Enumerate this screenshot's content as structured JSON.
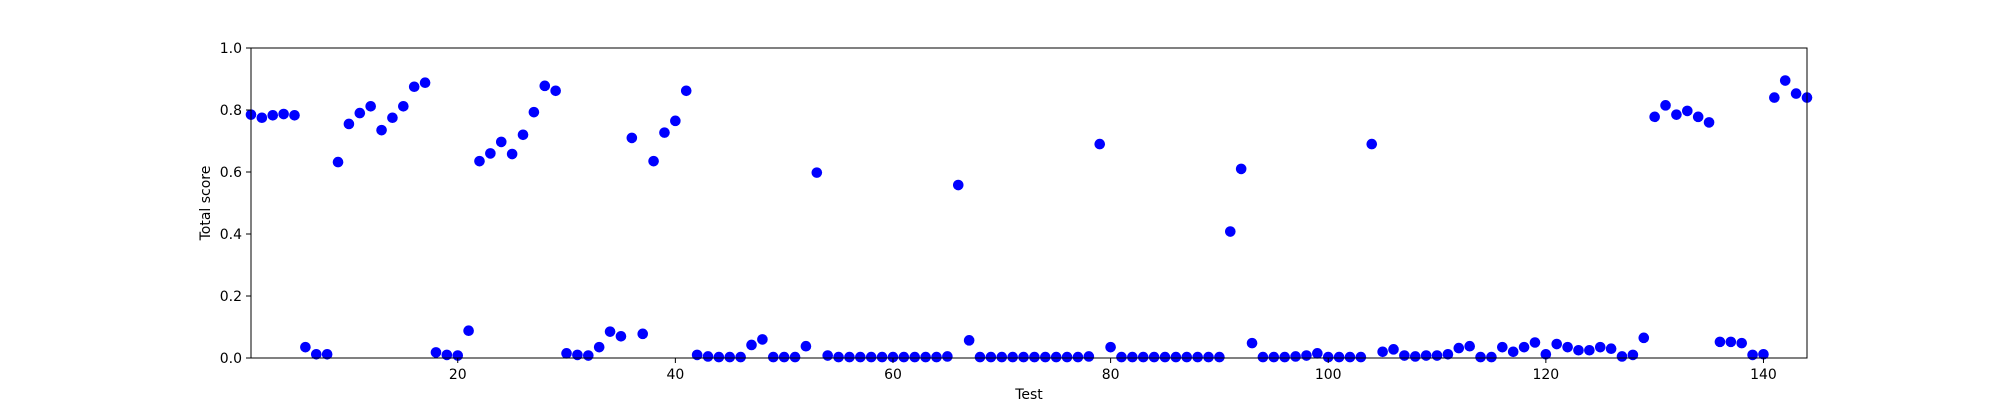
{
  "chart_data": {
    "type": "scatter",
    "xlabel": "Test",
    "ylabel": "Total score",
    "xlim": [
      1,
      144
    ],
    "ylim": [
      0,
      1
    ],
    "x_ticks": [
      20,
      40,
      60,
      80,
      100,
      120,
      140
    ],
    "y_ticks": [
      0.0,
      0.2,
      0.4,
      0.6,
      0.8,
      1.0
    ],
    "x_tick_labels": [
      "20",
      "40",
      "60",
      "80",
      "100",
      "120",
      "140"
    ],
    "y_tick_labels": [
      "0.0",
      "0.2",
      "0.4",
      "0.6",
      "0.8",
      "1.0"
    ],
    "grid": false,
    "marker_color": "#0000ff",
    "series": [
      {
        "x": [
          1,
          2,
          3,
          4,
          5,
          6,
          7,
          8,
          9,
          10,
          11,
          12,
          13,
          14,
          15,
          16,
          17,
          18,
          19,
          20,
          21,
          22,
          23,
          24,
          25,
          26,
          27,
          28,
          29,
          30,
          31,
          32,
          33,
          34,
          35,
          36,
          37,
          38,
          39,
          40,
          41,
          42,
          43,
          44,
          45,
          46,
          47,
          48,
          49,
          50,
          51,
          52,
          53,
          54,
          55,
          56,
          57,
          58,
          59,
          60,
          61,
          62,
          63,
          64,
          65,
          66,
          67,
          68,
          69,
          70,
          71,
          72,
          73,
          74,
          75,
          76,
          77,
          78,
          79,
          80,
          81,
          82,
          83,
          84,
          85,
          86,
          87,
          88,
          89,
          90,
          91,
          92,
          93,
          94,
          95,
          96,
          97,
          98,
          99,
          100,
          101,
          102,
          103,
          104,
          105,
          106,
          107,
          108,
          109,
          110,
          111,
          112,
          113,
          114,
          115,
          116,
          117,
          118,
          119,
          120,
          121,
          122,
          123,
          124,
          125,
          126,
          127,
          128,
          129,
          130,
          131,
          132,
          133,
          134,
          135,
          136,
          137,
          138,
          139,
          140,
          141,
          142,
          143,
          144
        ],
        "y": [
          0.785,
          0.775,
          0.783,
          0.787,
          0.783,
          0.035,
          0.012,
          0.012,
          0.632,
          0.755,
          0.79,
          0.812,
          0.735,
          0.775,
          0.812,
          0.875,
          0.888,
          0.018,
          0.01,
          0.008,
          0.088,
          0.635,
          0.66,
          0.697,
          0.658,
          0.72,
          0.793,
          0.878,
          0.862,
          0.015,
          0.01,
          0.008,
          0.035,
          0.085,
          0.07,
          0.71,
          0.078,
          0.635,
          0.727,
          0.765,
          0.862,
          0.01,
          0.005,
          0.003,
          0.003,
          0.003,
          0.042,
          0.06,
          0.003,
          0.003,
          0.003,
          0.038,
          0.598,
          0.008,
          0.003,
          0.003,
          0.003,
          0.003,
          0.003,
          0.003,
          0.003,
          0.003,
          0.003,
          0.003,
          0.005,
          0.558,
          0.057,
          0.003,
          0.003,
          0.003,
          0.003,
          0.003,
          0.003,
          0.003,
          0.003,
          0.003,
          0.003,
          0.005,
          0.69,
          0.035,
          0.003,
          0.003,
          0.003,
          0.003,
          0.003,
          0.003,
          0.003,
          0.003,
          0.003,
          0.003,
          0.408,
          0.61,
          0.048,
          0.003,
          0.003,
          0.003,
          0.005,
          0.008,
          0.015,
          0.003,
          0.003,
          0.003,
          0.003,
          0.69,
          0.02,
          0.028,
          0.008,
          0.005,
          0.008,
          0.008,
          0.012,
          0.032,
          0.038,
          0.003,
          0.003,
          0.035,
          0.02,
          0.035,
          0.05,
          0.012,
          0.045,
          0.035,
          0.025,
          0.025,
          0.035,
          0.03,
          0.005,
          0.01,
          0.065,
          0.778,
          0.815,
          0.785,
          0.797,
          0.778,
          0.76,
          0.052,
          0.052,
          0.048,
          0.01,
          0.012,
          0.84,
          0.895,
          0.853,
          0.84
        ]
      }
    ]
  }
}
